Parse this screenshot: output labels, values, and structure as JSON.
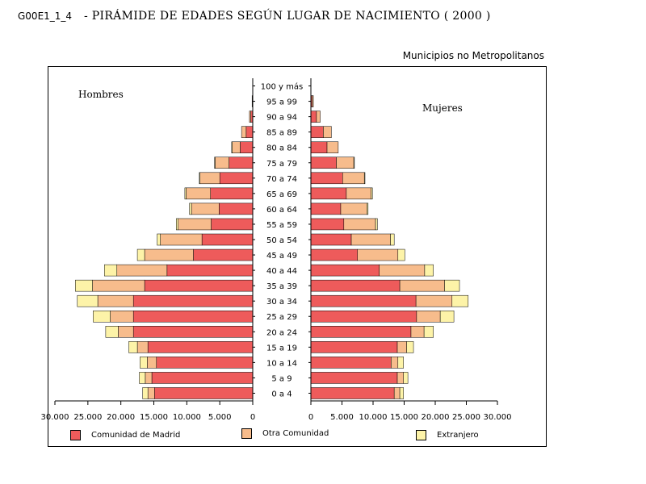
{
  "header": {
    "code": "G00E1_1_4",
    "title": "- PIRÁMIDE DE EDADES SEGÚN LUGAR DE NACIMIENTO  ( 2000 )"
  },
  "subtitle": "Municipios no Metropolitanos",
  "colors": {
    "madrid": "#ee5b5b",
    "otra": "#f7bc8c",
    "extranjero": "#fdf3a8"
  },
  "chart_data": {
    "type": "bar",
    "orientation": "horizontal-pyramid",
    "panels": [
      "Hombres",
      "Mujeres"
    ],
    "categories": [
      "0 a 4",
      "5 a 9",
      "10 a 14",
      "15 a 19",
      "20 a 24",
      "25 a 29",
      "30 a 34",
      "35 a 39",
      "40 a 44",
      "45 a 49",
      "50 a 54",
      "55 a 59",
      "60 a 64",
      "65 a 69",
      "70 a 74",
      "75 a 79",
      "80 a 84",
      "85 a 89",
      "90 a 94",
      "95 a 99",
      "100 y más"
    ],
    "xlim": [
      0,
      30000
    ],
    "ticks": [
      {
        "value": 30000,
        "label": "30.000"
      },
      {
        "value": 25000,
        "label": "25.000"
      },
      {
        "value": 20000,
        "label": "20.000"
      },
      {
        "value": 15000,
        "label": "15.000"
      },
      {
        "value": 10000,
        "label": "10.000"
      },
      {
        "value": 5000,
        "label": "5.000"
      },
      {
        "value": 0,
        "label": "0"
      }
    ],
    "series": [
      {
        "name": "Comunidad de Madrid",
        "hombres": [
          14900,
          15300,
          14600,
          15900,
          18100,
          18100,
          18100,
          16400,
          13000,
          9000,
          7700,
          6300,
          5100,
          6400,
          5000,
          3600,
          1900,
          1000,
          300,
          0,
          0
        ],
        "mujeres": [
          13400,
          13900,
          12900,
          13900,
          16100,
          17000,
          16900,
          14300,
          11000,
          7500,
          6500,
          5300,
          4800,
          5700,
          5100,
          4100,
          2600,
          2000,
          900,
          200,
          0
        ]
      },
      {
        "name": "Otra Comunidad",
        "hombres": [
          1000,
          1000,
          1400,
          1600,
          2300,
          3500,
          5400,
          7900,
          7600,
          7400,
          6300,
          5000,
          4200,
          3700,
          3000,
          2100,
          1200,
          700,
          200,
          100,
          0
        ],
        "mujeres": [
          900,
          1000,
          1100,
          1500,
          2100,
          3800,
          5800,
          7200,
          7300,
          6500,
          6300,
          5100,
          4200,
          4000,
          3500,
          2800,
          1800,
          1300,
          600,
          200,
          0
        ]
      },
      {
        "name": "Extranjero",
        "hombres": [
          800,
          900,
          1100,
          1300,
          1900,
          2600,
          3100,
          2600,
          1900,
          1100,
          500,
          300,
          300,
          200,
          100,
          100,
          100,
          0,
          0,
          0,
          0
        ],
        "mujeres": [
          600,
          700,
          900,
          1100,
          1500,
          2200,
          2600,
          2400,
          1400,
          1100,
          600,
          300,
          200,
          200,
          100,
          100,
          0,
          0,
          0,
          0,
          0
        ]
      }
    ]
  }
}
